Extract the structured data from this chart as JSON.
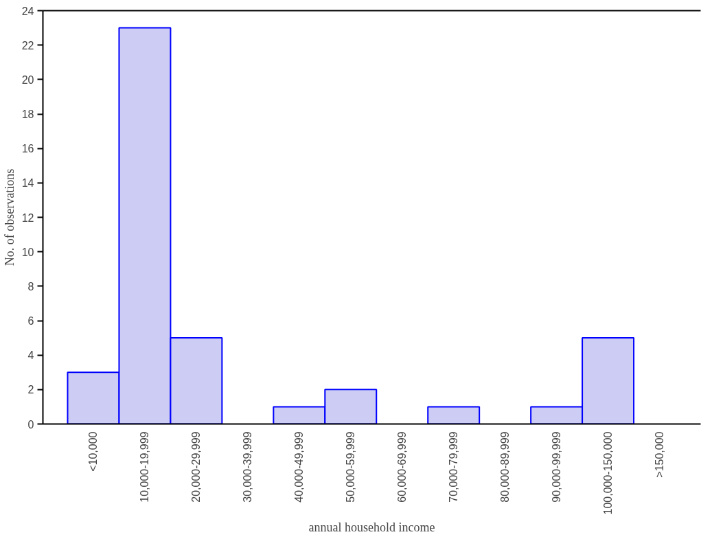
{
  "chart_data": {
    "type": "bar",
    "xlabel": "annual household income",
    "ylabel": "No. of observations",
    "categories": [
      "<10,000",
      "10,000-19,999",
      "20,000-29,999",
      "30,000-39,999",
      "40,000-49,999",
      "50,000-59,999",
      "60,000-69,999",
      "70,000-79,999",
      "80,000-89,999",
      "90,000-99,999",
      "100,000-150,000",
      ">150,000"
    ],
    "values": [
      3,
      23,
      5,
      0,
      1,
      2,
      0,
      1,
      0,
      1,
      5,
      0
    ],
    "color": "#ccccf5",
    "ylim": [
      0,
      24
    ],
    "yticks": [
      0,
      2,
      4,
      6,
      8,
      10,
      12,
      14,
      16,
      18,
      20,
      22,
      24
    ]
  }
}
